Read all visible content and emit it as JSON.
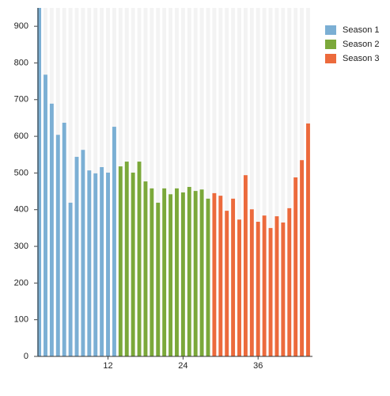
{
  "chart_data": {
    "type": "bar",
    "xlim": [
      0.8,
      44.7
    ],
    "xticks": [
      12,
      24,
      36
    ],
    "ylim": [
      0,
      950
    ],
    "yticks": [
      0,
      100,
      200,
      300,
      400,
      500,
      600,
      700,
      800,
      900
    ],
    "legend": "top-right",
    "series": [
      {
        "name": "Season 1",
        "color": "#7bafd4",
        "x": [
          1,
          2,
          3,
          4,
          5,
          6,
          7,
          8,
          9,
          10,
          11,
          12,
          13
        ],
        "values": [
          950,
          768,
          689,
          604,
          637,
          419,
          544,
          563,
          507,
          499,
          516,
          501,
          626
        ]
      },
      {
        "name": "Season 2",
        "color": "#7ba83a",
        "x": [
          14,
          15,
          16,
          17,
          18,
          19,
          20,
          21,
          22,
          23,
          24,
          25,
          26,
          27,
          28
        ],
        "values": [
          518,
          531,
          501,
          531,
          477,
          458,
          419,
          458,
          442,
          458,
          447,
          462,
          451,
          455,
          430
        ]
      },
      {
        "name": "Season 3",
        "color": "#ec6a3c",
        "x": [
          29,
          30,
          31,
          32,
          33,
          34,
          35,
          36,
          37,
          38,
          39,
          40,
          41,
          42,
          43,
          44
        ],
        "values": [
          445,
          438,
          397,
          430,
          373,
          494,
          401,
          367,
          384,
          350,
          382,
          365,
          404,
          488,
          535,
          635
        ]
      }
    ]
  }
}
